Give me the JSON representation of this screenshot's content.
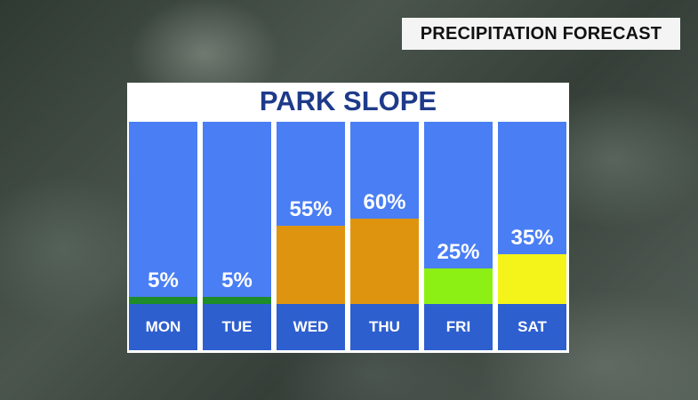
{
  "header_tag": "PRECIPITATION FORECAST",
  "chart_data": {
    "type": "bar",
    "title": "PARK SLOPE",
    "categories": [
      "MON",
      "TUE",
      "WED",
      "THU",
      "FRI",
      "SAT"
    ],
    "values": [
      5,
      5,
      55,
      60,
      25,
      35
    ],
    "labels": [
      "5%",
      "5%",
      "55%",
      "60%",
      "25%",
      "35%"
    ],
    "bar_colors": [
      "#1e8c2a",
      "#1e8c2a",
      "#df9410",
      "#df9410",
      "#8df015",
      "#f4f41a"
    ],
    "ylim": [
      0,
      100
    ],
    "grid": false,
    "legend": "none"
  }
}
